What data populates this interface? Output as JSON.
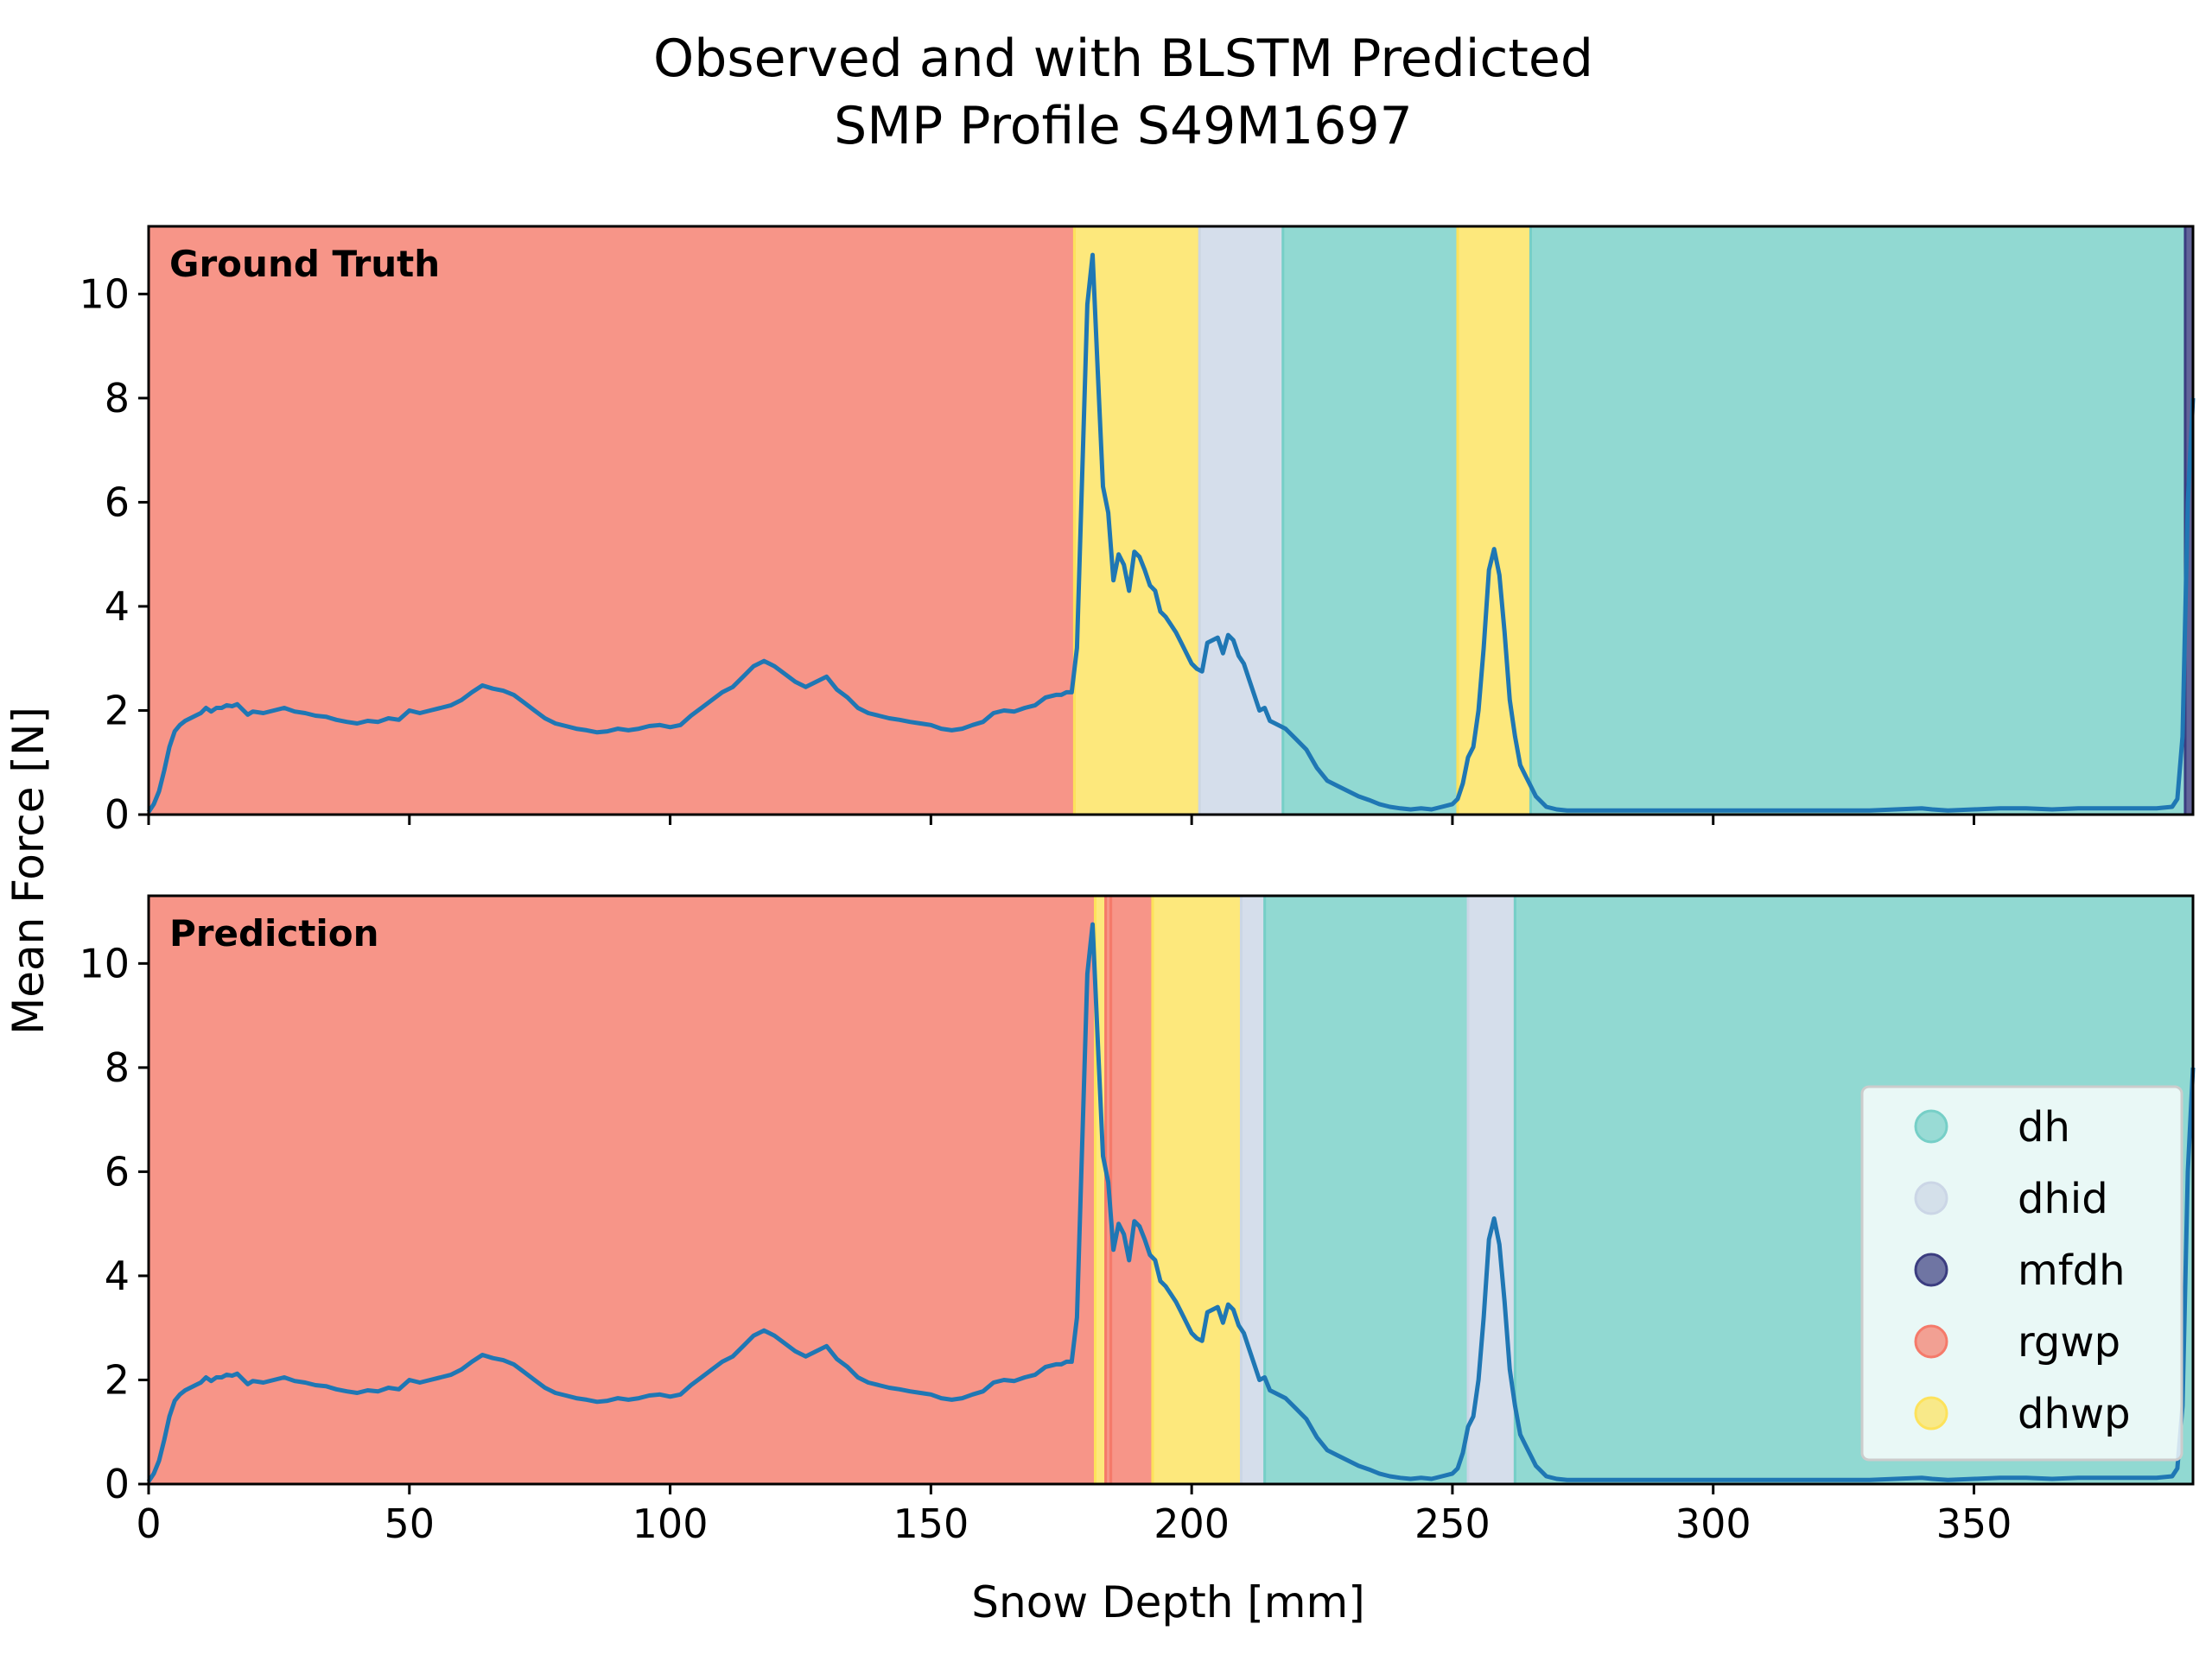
{
  "chart_data": {
    "type": "line",
    "title": [
      "Observed and with BLSTM Predicted",
      "SMP Profile S49M1697"
    ],
    "xlabel": "Snow Depth [mm]",
    "ylabel": "Mean Force [N]",
    "xlim": [
      0,
      392
    ],
    "ylim": [
      0,
      11.3
    ],
    "x_ticks": [
      0,
      50,
      100,
      150,
      200,
      250,
      300,
      350
    ],
    "y_ticks": [
      0,
      2,
      4,
      6,
      8,
      10
    ],
    "grid": false,
    "line_color": "#1f77b4",
    "classes": [
      {
        "name": "dh",
        "color": "#76cfc7"
      },
      {
        "name": "dhid",
        "color": "#cbd6e6"
      },
      {
        "name": "mfdh",
        "color": "#3b3d80"
      },
      {
        "name": "rgwp",
        "color": "#f57a6a"
      },
      {
        "name": "dhwp",
        "color": "#fde25b"
      }
    ],
    "legend": {
      "placement": "lower-right",
      "panel": "Prediction"
    },
    "series": [
      {
        "values": [
          [
            0,
            0.05
          ],
          [
            1,
            0.2
          ],
          [
            2,
            0.45
          ],
          [
            3,
            0.85
          ],
          [
            4,
            1.3
          ],
          [
            5,
            1.6
          ],
          [
            6,
            1.72
          ],
          [
            7,
            1.8
          ],
          [
            8,
            1.85
          ],
          [
            9,
            1.9
          ],
          [
            10,
            1.95
          ],
          [
            11,
            2.05
          ],
          [
            12,
            1.98
          ],
          [
            13,
            2.05
          ],
          [
            14,
            2.05
          ],
          [
            15,
            2.1
          ],
          [
            16,
            2.08
          ],
          [
            17,
            2.12
          ],
          [
            18,
            2.02
          ],
          [
            19,
            1.92
          ],
          [
            20,
            1.98
          ],
          [
            22,
            1.95
          ],
          [
            24,
            2.0
          ],
          [
            26,
            2.05
          ],
          [
            28,
            1.98
          ],
          [
            30,
            1.95
          ],
          [
            32,
            1.9
          ],
          [
            34,
            1.88
          ],
          [
            36,
            1.82
          ],
          [
            38,
            1.78
          ],
          [
            40,
            1.75
          ],
          [
            42,
            1.8
          ],
          [
            44,
            1.78
          ],
          [
            46,
            1.85
          ],
          [
            48,
            1.82
          ],
          [
            50,
            2.0
          ],
          [
            52,
            1.95
          ],
          [
            54,
            2.0
          ],
          [
            56,
            2.05
          ],
          [
            58,
            2.1
          ],
          [
            60,
            2.2
          ],
          [
            62,
            2.35
          ],
          [
            64,
            2.48
          ],
          [
            66,
            2.42
          ],
          [
            68,
            2.38
          ],
          [
            70,
            2.3
          ],
          [
            72,
            2.15
          ],
          [
            74,
            2.0
          ],
          [
            76,
            1.85
          ],
          [
            78,
            1.75
          ],
          [
            80,
            1.7
          ],
          [
            82,
            1.65
          ],
          [
            84,
            1.62
          ],
          [
            86,
            1.58
          ],
          [
            88,
            1.6
          ],
          [
            90,
            1.65
          ],
          [
            92,
            1.62
          ],
          [
            94,
            1.65
          ],
          [
            96,
            1.7
          ],
          [
            98,
            1.72
          ],
          [
            100,
            1.68
          ],
          [
            102,
            1.72
          ],
          [
            104,
            1.9
          ],
          [
            106,
            2.05
          ],
          [
            108,
            2.2
          ],
          [
            110,
            2.35
          ],
          [
            112,
            2.45
          ],
          [
            114,
            2.65
          ],
          [
            116,
            2.85
          ],
          [
            118,
            2.95
          ],
          [
            120,
            2.85
          ],
          [
            122,
            2.7
          ],
          [
            124,
            2.55
          ],
          [
            126,
            2.45
          ],
          [
            128,
            2.55
          ],
          [
            130,
            2.65
          ],
          [
            132,
            2.4
          ],
          [
            134,
            2.25
          ],
          [
            136,
            2.05
          ],
          [
            138,
            1.95
          ],
          [
            140,
            1.9
          ],
          [
            142,
            1.85
          ],
          [
            144,
            1.82
          ],
          [
            146,
            1.78
          ],
          [
            148,
            1.75
          ],
          [
            150,
            1.72
          ],
          [
            152,
            1.65
          ],
          [
            154,
            1.62
          ],
          [
            156,
            1.65
          ],
          [
            158,
            1.72
          ],
          [
            160,
            1.78
          ],
          [
            162,
            1.95
          ],
          [
            164,
            2.0
          ],
          [
            166,
            1.98
          ],
          [
            168,
            2.05
          ],
          [
            170,
            2.1
          ],
          [
            172,
            2.25
          ],
          [
            174,
            2.3
          ],
          [
            175,
            2.3
          ],
          [
            176,
            2.35
          ],
          [
            177,
            2.35
          ],
          [
            178,
            3.2
          ],
          [
            179,
            6.5
          ],
          [
            180,
            9.8
          ],
          [
            181,
            10.75
          ],
          [
            182,
            8.5
          ],
          [
            183,
            6.3
          ],
          [
            184,
            5.8
          ],
          [
            185,
            4.5
          ],
          [
            186,
            5.0
          ],
          [
            187,
            4.8
          ],
          [
            188,
            4.3
          ],
          [
            189,
            5.05
          ],
          [
            190,
            4.95
          ],
          [
            191,
            4.7
          ],
          [
            192,
            4.4
          ],
          [
            193,
            4.3
          ],
          [
            194,
            3.9
          ],
          [
            195,
            3.8
          ],
          [
            196,
            3.65
          ],
          [
            197,
            3.5
          ],
          [
            198,
            3.3
          ],
          [
            199,
            3.1
          ],
          [
            200,
            2.9
          ],
          [
            201,
            2.8
          ],
          [
            202,
            2.75
          ],
          [
            203,
            3.3
          ],
          [
            204,
            3.35
          ],
          [
            205,
            3.4
          ],
          [
            206,
            3.1
          ],
          [
            207,
            3.45
          ],
          [
            208,
            3.35
          ],
          [
            209,
            3.05
          ],
          [
            210,
            2.9
          ],
          [
            211,
            2.6
          ],
          [
            212,
            2.3
          ],
          [
            213,
            2.0
          ],
          [
            214,
            2.05
          ],
          [
            215,
            1.8
          ],
          [
            216,
            1.75
          ],
          [
            218,
            1.65
          ],
          [
            220,
            1.45
          ],
          [
            222,
            1.25
          ],
          [
            224,
            0.9
          ],
          [
            226,
            0.65
          ],
          [
            228,
            0.55
          ],
          [
            230,
            0.45
          ],
          [
            232,
            0.35
          ],
          [
            234,
            0.28
          ],
          [
            236,
            0.2
          ],
          [
            238,
            0.15
          ],
          [
            240,
            0.12
          ],
          [
            242,
            0.1
          ],
          [
            244,
            0.12
          ],
          [
            246,
            0.1
          ],
          [
            248,
            0.15
          ],
          [
            250,
            0.2
          ],
          [
            251,
            0.3
          ],
          [
            252,
            0.6
          ],
          [
            253,
            1.1
          ],
          [
            254,
            1.3
          ],
          [
            255,
            2.0
          ],
          [
            256,
            3.2
          ],
          [
            257,
            4.7
          ],
          [
            258,
            5.1
          ],
          [
            259,
            4.6
          ],
          [
            260,
            3.5
          ],
          [
            261,
            2.2
          ],
          [
            262,
            1.5
          ],
          [
            263,
            0.95
          ],
          [
            264,
            0.75
          ],
          [
            265,
            0.55
          ],
          [
            266,
            0.35
          ],
          [
            268,
            0.15
          ],
          [
            270,
            0.1
          ],
          [
            272,
            0.08
          ],
          [
            280,
            0.08
          ],
          [
            300,
            0.08
          ],
          [
            320,
            0.08
          ],
          [
            330,
            0.08
          ],
          [
            340,
            0.12
          ],
          [
            342,
            0.1
          ],
          [
            345,
            0.08
          ],
          [
            350,
            0.1
          ],
          [
            355,
            0.12
          ],
          [
            360,
            0.12
          ],
          [
            365,
            0.1
          ],
          [
            370,
            0.12
          ],
          [
            375,
            0.12
          ],
          [
            380,
            0.12
          ],
          [
            385,
            0.12
          ],
          [
            388,
            0.15
          ],
          [
            389,
            0.3
          ],
          [
            390,
            1.5
          ],
          [
            391,
            6.0
          ],
          [
            392,
            8.0
          ]
        ]
      }
    ],
    "panels": [
      {
        "label": "Ground Truth",
        "segments": [
          {
            "start": 0,
            "end": 177.5,
            "class": "rgwp"
          },
          {
            "start": 177.5,
            "end": 201.5,
            "class": "dhwp"
          },
          {
            "start": 201.5,
            "end": 217.5,
            "class": "dhid"
          },
          {
            "start": 217.5,
            "end": 251,
            "class": "dh"
          },
          {
            "start": 251,
            "end": 265,
            "class": "dhwp"
          },
          {
            "start": 265,
            "end": 390.5,
            "class": "dh"
          },
          {
            "start": 390.5,
            "end": 392,
            "class": "mfdh"
          }
        ]
      },
      {
        "label": "Prediction",
        "segments": [
          {
            "start": 0,
            "end": 181.5,
            "class": "rgwp"
          },
          {
            "start": 181.5,
            "end": 183.5,
            "class": "dhwp"
          },
          {
            "start": 183.5,
            "end": 184.5,
            "class": "rgwp"
          },
          {
            "start": 184.5,
            "end": 192.5,
            "class": "rgwp"
          },
          {
            "start": 192.5,
            "end": 209.5,
            "class": "dhwp"
          },
          {
            "start": 209.5,
            "end": 214,
            "class": "dhid"
          },
          {
            "start": 214,
            "end": 253,
            "class": "dh"
          },
          {
            "start": 253,
            "end": 262,
            "class": "dhid"
          },
          {
            "start": 262,
            "end": 392,
            "class": "dh"
          }
        ]
      }
    ]
  }
}
